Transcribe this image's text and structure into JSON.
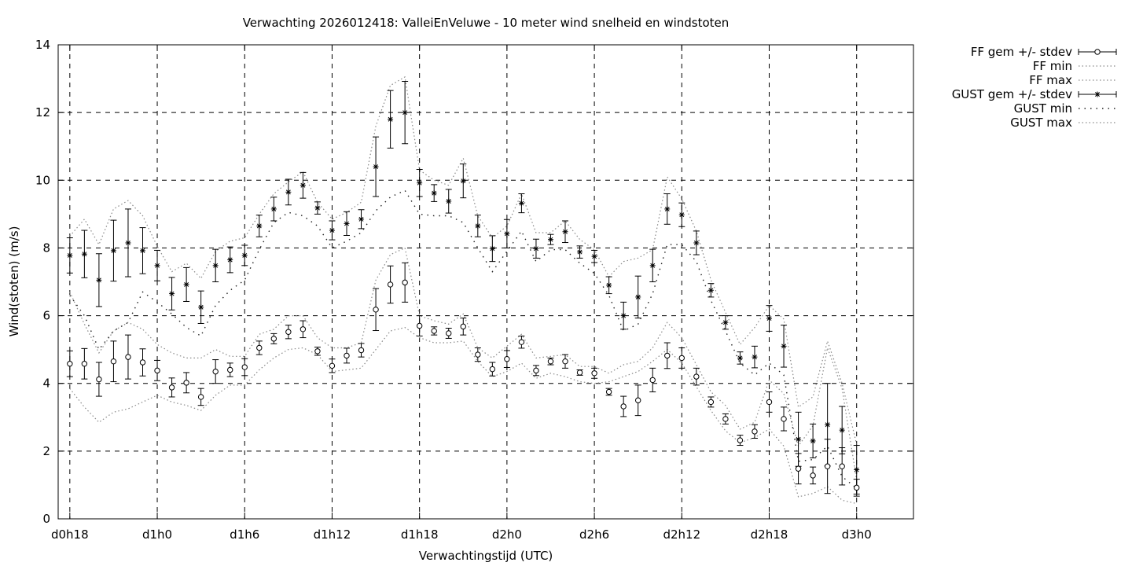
{
  "chart_data": {
    "type": "line",
    "title": "Verwachting 2026012418: ValleiEnVeluwe - 10 meter wind snelheid en windstoten",
    "xlabel": "Verwachtingstijd (UTC)",
    "ylabel": "Wind(stoten) (m/s)",
    "ylim": [
      0,
      14
    ],
    "yticks": [
      0,
      2,
      4,
      6,
      8,
      10,
      12,
      14
    ],
    "xlim": [
      -0.8,
      57.9
    ],
    "xticks": [
      {
        "x": 0,
        "label": "d0h18"
      },
      {
        "x": 6,
        "label": "d1h0"
      },
      {
        "x": 12,
        "label": "d1h6"
      },
      {
        "x": 18,
        "label": "d1h12"
      },
      {
        "x": 24,
        "label": "d1h18"
      },
      {
        "x": 30,
        "label": "d2h0"
      },
      {
        "x": 36,
        "label": "d2h6"
      },
      {
        "x": 42,
        "label": "d2h12"
      },
      {
        "x": 48,
        "label": "d2h18"
      },
      {
        "x": 54,
        "label": "d3h0"
      }
    ],
    "grid": true,
    "legend_position": "outside-right",
    "x": [
      0,
      1,
      2,
      3,
      4,
      5,
      6,
      7,
      8,
      9,
      10,
      11,
      12,
      13,
      14,
      15,
      16,
      17,
      18,
      19,
      20,
      21,
      22,
      23,
      24,
      25,
      26,
      27,
      28,
      29,
      30,
      31,
      32,
      33,
      34,
      35,
      36,
      37,
      38,
      39,
      40,
      41,
      42,
      43,
      44,
      45,
      46,
      47,
      48,
      49,
      50,
      51,
      52,
      53,
      54
    ],
    "series": [
      {
        "name": "FF gem +/- stdev",
        "style": "points-errorbars-circle",
        "values": [
          4.58,
          4.58,
          4.12,
          4.65,
          4.78,
          4.62,
          4.38,
          3.88,
          4.02,
          3.6,
          4.35,
          4.4,
          4.48,
          5.05,
          5.32,
          5.52,
          5.6,
          4.95,
          4.52,
          4.82,
          4.98,
          6.18,
          6.92,
          6.98,
          5.7,
          5.55,
          5.48,
          5.68,
          4.85,
          4.42,
          4.72,
          5.22,
          4.38,
          4.65,
          4.65,
          4.32,
          4.3,
          3.75,
          3.32,
          3.5,
          4.1,
          4.82,
          4.75,
          4.2,
          3.45,
          2.95,
          2.32,
          2.58,
          3.45,
          2.95,
          1.48,
          1.28,
          1.55,
          1.55,
          0.92
        ],
        "stdev": [
          0.38,
          0.45,
          0.5,
          0.6,
          0.65,
          0.4,
          0.3,
          0.28,
          0.3,
          0.25,
          0.35,
          0.2,
          0.25,
          0.2,
          0.15,
          0.2,
          0.25,
          0.12,
          0.2,
          0.22,
          0.2,
          0.62,
          0.55,
          0.58,
          0.3,
          0.12,
          0.15,
          0.25,
          0.2,
          0.2,
          0.25,
          0.18,
          0.15,
          0.1,
          0.2,
          0.08,
          0.15,
          0.1,
          0.3,
          0.45,
          0.35,
          0.38,
          0.3,
          0.25,
          0.15,
          0.15,
          0.15,
          0.2,
          0.3,
          0.35,
          0.45,
          0.25,
          0.8,
          0.55,
          0.25
        ]
      },
      {
        "name": "FF min",
        "style": "dotted",
        "values": [
          3.85,
          3.3,
          2.85,
          3.15,
          3.25,
          3.45,
          3.65,
          3.45,
          3.35,
          3.2,
          3.65,
          3.95,
          3.95,
          4.4,
          4.75,
          5.0,
          5.05,
          4.85,
          4.35,
          4.4,
          4.45,
          5.0,
          5.55,
          5.65,
          5.35,
          5.2,
          5.2,
          5.25,
          4.65,
          4.2,
          4.35,
          4.6,
          4.15,
          4.3,
          4.2,
          4.05,
          4.0,
          4.05,
          4.2,
          4.35,
          4.65,
          5.0,
          4.6,
          3.9,
          3.2,
          2.6,
          2.25,
          2.4,
          2.65,
          2.15,
          0.65,
          0.75,
          0.95,
          0.55,
          0.45
        ]
      },
      {
        "name": "FF max",
        "style": "dotted",
        "values": [
          6.7,
          5.75,
          4.9,
          5.55,
          5.8,
          5.6,
          5.15,
          4.9,
          4.75,
          4.75,
          5.0,
          4.8,
          4.8,
          5.45,
          5.6,
          6.0,
          6.0,
          5.35,
          5.05,
          5.05,
          5.2,
          7.05,
          7.8,
          8.0,
          6.0,
          5.85,
          5.75,
          6.05,
          5.05,
          4.75,
          5.1,
          5.45,
          4.75,
          4.8,
          4.85,
          4.5,
          4.5,
          4.3,
          4.55,
          4.65,
          5.05,
          5.8,
          5.35,
          4.55,
          3.75,
          3.35,
          2.65,
          2.85,
          4.1,
          3.7,
          2.15,
          2.75,
          5.05,
          3.85,
          1.15
        ]
      },
      {
        "name": "GUST gem +/- stdev",
        "style": "points-errorbars-star",
        "values": [
          7.78,
          7.82,
          7.05,
          7.92,
          8.15,
          7.92,
          7.48,
          6.65,
          6.92,
          6.25,
          7.48,
          7.65,
          7.78,
          8.65,
          9.15,
          9.65,
          9.85,
          9.18,
          8.52,
          8.72,
          8.85,
          10.4,
          11.8,
          12.0,
          9.92,
          9.62,
          9.38,
          9.98,
          8.65,
          7.98,
          8.42,
          9.32,
          7.98,
          8.25,
          8.48,
          7.88,
          7.75,
          6.9,
          6.0,
          6.55,
          7.48,
          9.15,
          8.98,
          8.15,
          6.75,
          5.8,
          4.75,
          4.78,
          5.92,
          5.1,
          2.35,
          2.3,
          2.78,
          2.62,
          1.45
        ]
      },
      {
        "name": "GUST min",
        "style": "dashdot",
        "values": [
          6.6,
          6.0,
          5.0,
          5.55,
          5.8,
          6.7,
          6.4,
          6.05,
          5.65,
          5.4,
          6.3,
          6.75,
          7.05,
          7.95,
          8.75,
          9.05,
          8.95,
          8.65,
          8.0,
          8.2,
          8.45,
          9.1,
          9.5,
          9.7,
          9.0,
          8.95,
          8.95,
          8.75,
          8.0,
          7.3,
          7.9,
          8.5,
          7.6,
          7.95,
          7.95,
          7.55,
          7.25,
          6.6,
          5.55,
          5.75,
          6.65,
          8.1,
          8.1,
          7.6,
          6.45,
          5.55,
          4.6,
          4.25,
          4.6,
          4.25,
          1.7,
          1.75,
          2.15,
          1.25,
          0.9
        ]
      },
      {
        "name": "GUST max",
        "style": "dotted",
        "values": [
          8.35,
          8.85,
          8.1,
          9.15,
          9.4,
          8.95,
          8.05,
          7.3,
          7.55,
          7.1,
          7.9,
          8.2,
          8.3,
          9.0,
          9.6,
          9.95,
          10.25,
          9.35,
          8.85,
          9.05,
          9.35,
          11.6,
          12.8,
          13.05,
          10.3,
          10.0,
          9.85,
          10.65,
          8.95,
          8.3,
          8.65,
          9.6,
          8.45,
          8.45,
          8.8,
          8.25,
          7.95,
          7.15,
          7.6,
          7.7,
          7.95,
          10.1,
          9.45,
          8.5,
          7.05,
          6.1,
          5.15,
          5.65,
          6.3,
          5.9,
          3.3,
          3.6,
          5.25,
          4.0,
          2.2
        ]
      },
      {
        "name": "GUST gem stdev",
        "style": "hidden",
        "values": [
          0.52,
          0.7,
          0.78,
          0.9,
          1.0,
          0.68,
          0.45,
          0.48,
          0.5,
          0.48,
          0.48,
          0.38,
          0.3,
          0.32,
          0.35,
          0.38,
          0.38,
          0.18,
          0.28,
          0.35,
          0.28,
          0.88,
          0.85,
          0.92,
          0.4,
          0.25,
          0.35,
          0.5,
          0.32,
          0.38,
          0.42,
          0.28,
          0.28,
          0.15,
          0.32,
          0.18,
          0.18,
          0.25,
          0.4,
          0.62,
          0.48,
          0.45,
          0.35,
          0.35,
          0.2,
          0.2,
          0.18,
          0.32,
          0.38,
          0.62,
          0.8,
          0.5,
          1.22,
          0.7,
          0.72
        ]
      }
    ]
  }
}
